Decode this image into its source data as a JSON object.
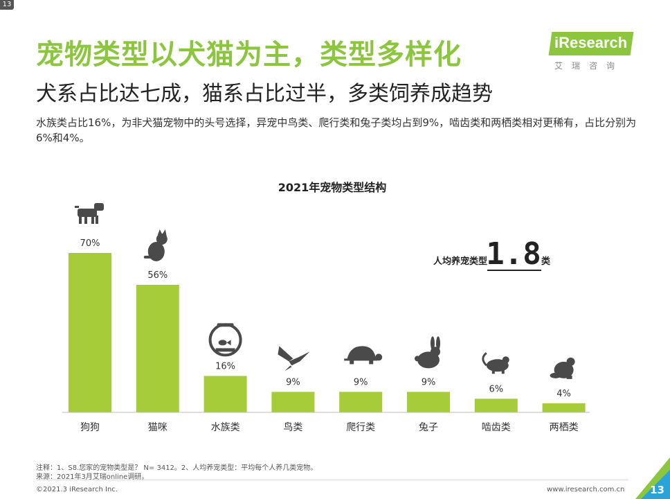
{
  "badge": "13",
  "header": {
    "title": "宠物类型以犬猫为主，类型多样化",
    "subtitle": "犬系占比达七成，猫系占比过半，多类饲养成趋势",
    "description": "水族类占比16%，为非犬猫宠物中的头号选择，异宠中鸟类、爬行类和兔子类均占到9%，啮齿类和两栖类相对更稀有，占比分别为6%和4%。"
  },
  "logo": {
    "text": "iResearch",
    "chinese": "艾瑞咨询"
  },
  "colors": {
    "accent": "#8cc63f",
    "bar": "#a6cd39",
    "icon": "#4a4a4a"
  },
  "chart_data": {
    "type": "bar",
    "title": "2021年宠物类型结构",
    "categories": [
      "狗狗",
      "猫咪",
      "水族类",
      "鸟类",
      "爬行类",
      "兔子",
      "啮齿类",
      "两栖类"
    ],
    "values": [
      70,
      56,
      16,
      9,
      9,
      9,
      6,
      4
    ],
    "value_labels": [
      "70%",
      "56%",
      "16%",
      "9%",
      "9%",
      "9%",
      "6%",
      "4%"
    ],
    "icons": [
      "dog-icon",
      "cat-icon",
      "fishbowl-icon",
      "bird-icon",
      "turtle-icon",
      "rabbit-icon",
      "mouse-icon",
      "frog-icon"
    ],
    "ylim": [
      0,
      70
    ],
    "grid": false,
    "legend": "none",
    "annotation": {
      "prefix": "人均养宠类型",
      "value": "1.8",
      "suffix": "类"
    }
  },
  "footer": {
    "note1": "注释：1、S8.您家的宠物类型是？ N= 3412。2、人均养宠类型：平均每个人养几类宠物。",
    "note2": "来源：2021年3月艾瑞online调研。",
    "copyright": "©2021.3 iResearch Inc.",
    "website": "www.iresearch.com.cn",
    "page": "13"
  }
}
